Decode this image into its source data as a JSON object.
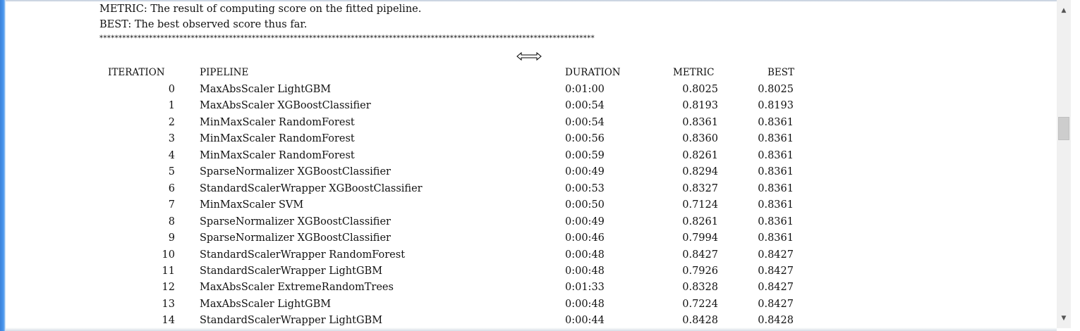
{
  "notes": {
    "metric_line": "METRIC: The result of computing score on the fitted pipeline.",
    "best_line": "BEST: The best observed score thus far.",
    "separator": "**********************************************************************************************************************************"
  },
  "table": {
    "headers": {
      "iteration": "ITERATION",
      "pipeline": "PIPELINE",
      "duration": "DURATION",
      "metric": "METRIC",
      "best": "BEST"
    },
    "rows": [
      {
        "iteration": "0",
        "pipeline": "MaxAbsScaler LightGBM",
        "duration": "0:01:00",
        "metric": "0.8025",
        "best": "0.8025"
      },
      {
        "iteration": "1",
        "pipeline": "MaxAbsScaler XGBoostClassifier",
        "duration": "0:00:54",
        "metric": "0.8193",
        "best": "0.8193"
      },
      {
        "iteration": "2",
        "pipeline": "MinMaxScaler RandomForest",
        "duration": "0:00:54",
        "metric": "0.8361",
        "best": "0.8361"
      },
      {
        "iteration": "3",
        "pipeline": "MinMaxScaler RandomForest",
        "duration": "0:00:56",
        "metric": "0.8360",
        "best": "0.8361"
      },
      {
        "iteration": "4",
        "pipeline": "MinMaxScaler RandomForest",
        "duration": "0:00:59",
        "metric": "0.8261",
        "best": "0.8361"
      },
      {
        "iteration": "5",
        "pipeline": "SparseNormalizer XGBoostClassifier",
        "duration": "0:00:49",
        "metric": "0.8294",
        "best": "0.8361"
      },
      {
        "iteration": "6",
        "pipeline": "StandardScalerWrapper XGBoostClassifier",
        "duration": "0:00:53",
        "metric": "0.8327",
        "best": "0.8361"
      },
      {
        "iteration": "7",
        "pipeline": "MinMaxScaler SVM",
        "duration": "0:00:50",
        "metric": "0.7124",
        "best": "0.8361"
      },
      {
        "iteration": "8",
        "pipeline": "SparseNormalizer XGBoostClassifier",
        "duration": "0:00:49",
        "metric": "0.8261",
        "best": "0.8361"
      },
      {
        "iteration": "9",
        "pipeline": "SparseNormalizer XGBoostClassifier",
        "duration": "0:00:46",
        "metric": "0.7994",
        "best": "0.8361"
      },
      {
        "iteration": "10",
        "pipeline": "StandardScalerWrapper RandomForest",
        "duration": "0:00:48",
        "metric": "0.8427",
        "best": "0.8427"
      },
      {
        "iteration": "11",
        "pipeline": "StandardScalerWrapper LightGBM",
        "duration": "0:00:48",
        "metric": "0.7926",
        "best": "0.8427"
      },
      {
        "iteration": "12",
        "pipeline": "MaxAbsScaler ExtremeRandomTrees",
        "duration": "0:01:33",
        "metric": "0.8328",
        "best": "0.8427"
      },
      {
        "iteration": "13",
        "pipeline": "MaxAbsScaler LightGBM",
        "duration": "0:00:48",
        "metric": "0.7224",
        "best": "0.8427"
      },
      {
        "iteration": "14",
        "pipeline": "StandardScalerWrapper LightGBM",
        "duration": "0:00:44",
        "metric": "0.8428",
        "best": "0.8428"
      }
    ]
  },
  "icons": {
    "cursor": "resize-horizontal-cursor-icon",
    "scroll_up": "scroll-up-arrow-icon",
    "scroll_down": "scroll-down-arrow-icon"
  },
  "scrollbar": {
    "position_fraction": 0.37
  },
  "colors": {
    "window_border": "#4a97ef",
    "text": "#111111",
    "scrollbar_track": "#f0f0f0",
    "scrollbar_thumb": "#cdcdcd"
  }
}
